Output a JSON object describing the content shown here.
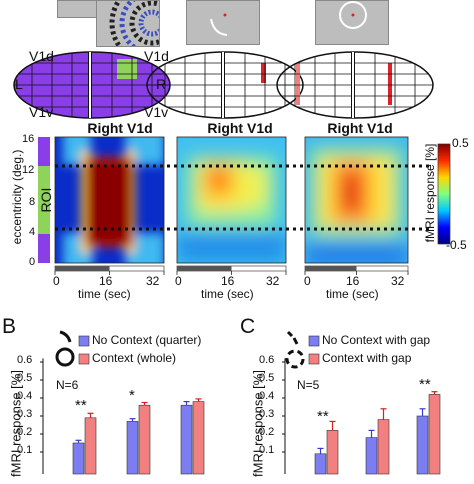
{
  "heatmap_panels": [
    {
      "title": "Right V1d"
    },
    {
      "title": "Right V1d"
    },
    {
      "title": "Right V1d"
    }
  ],
  "map_labels": {
    "v1d_left": "V1d",
    "v1d_right": "V1d",
    "v1v_left": "V1v",
    "v1v_right": "V1v",
    "left": "L",
    "right": "R"
  },
  "ecc_axis": {
    "label": "eccentricity (deg.)",
    "ticks": [
      "16",
      "12",
      "8",
      "4",
      "0"
    ],
    "roi": "ROI"
  },
  "time_axis": {
    "label": "time (sec)",
    "ticks": [
      "0",
      "16",
      "32"
    ]
  },
  "colorbar": {
    "label": "fMRI response [%]",
    "max": "0.5",
    "min": "-0.5",
    "colors": [
      "#7f0000",
      "#ff2a00",
      "#ffd700",
      "#7fff7f",
      "#00c8ff",
      "#0000ff",
      "#00007f"
    ]
  },
  "panel_b": {
    "letter": "B",
    "legend": [
      "No Context (quarter)",
      "Context (whole)"
    ],
    "n_label": "N=6",
    "ylabel": "fMRI response [%]",
    "yticks": [
      "0.6",
      "0.5",
      "0.4",
      "0.3",
      "0.2",
      "0.1"
    ],
    "significance": [
      "**",
      "*"
    ]
  },
  "panel_c": {
    "letter": "C",
    "legend": [
      "No Context with gap",
      "Context with gap"
    ],
    "n_label": "N=5",
    "ylabel": "fMRI response [%]",
    "yticks": [
      "0.6",
      "0.5",
      "0.4",
      "0.3",
      "0.2",
      "0.1"
    ],
    "significance": [
      "**",
      "**"
    ]
  },
  "colors": {
    "blue_bar": "#7d7df2",
    "red_bar": "#f28080",
    "violet": "#8a3ee8",
    "green": "#8fd45a"
  }
}
